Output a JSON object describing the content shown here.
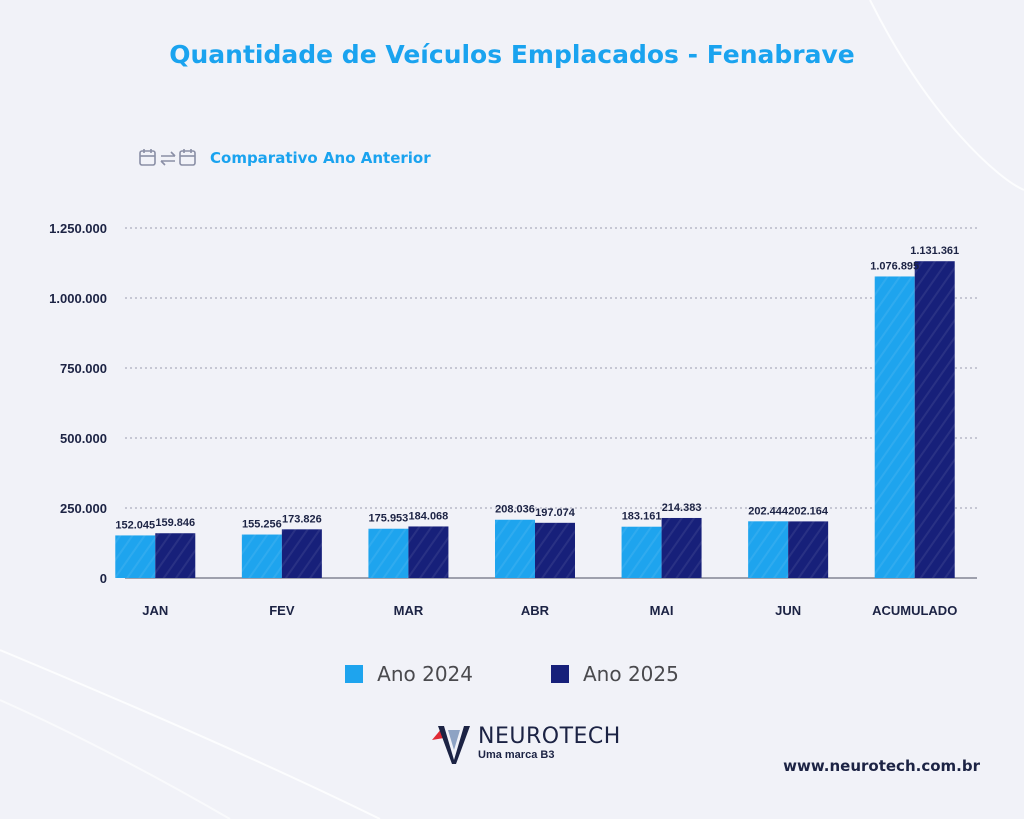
{
  "title": "Quantidade de Veículos Emplacados - Fenabrave",
  "subtitle": "Comparativo Ano Anterior",
  "colors": {
    "ano2024": "#1ea4ee",
    "ano2025": "#17207a",
    "accent": "#1aa3ef",
    "text": "#1c2344"
  },
  "icons": [
    "calendar-icon",
    "swap-arrows-icon",
    "calendar-icon"
  ],
  "chart_data": {
    "type": "bar",
    "categories": [
      "JAN",
      "FEV",
      "MAR",
      "ABR",
      "MAI",
      "JUN",
      "ACUMULADO"
    ],
    "series": [
      {
        "name": "Ano 2024",
        "values": [
          152045,
          155256,
          175953,
          208036,
          183161,
          202444,
          1076895
        ],
        "labels": [
          "152.045",
          "155.256",
          "175.953",
          "208.036",
          "183.161",
          "202.444",
          "1.076.895"
        ]
      },
      {
        "name": "Ano 2025",
        "values": [
          159846,
          173826,
          184068,
          197074,
          214383,
          202164,
          1131361
        ],
        "labels": [
          "159.846",
          "173.826",
          "184.068",
          "197.074",
          "214.383",
          "202.164",
          "1.131.361"
        ]
      }
    ],
    "yticks": [
      0,
      250000,
      500000,
      750000,
      1000000,
      1250000
    ],
    "ytick_labels": [
      "0",
      "250.000",
      "500.000",
      "750.000",
      "1.000.000",
      "1.250.000"
    ],
    "ylim": [
      0,
      1250000
    ],
    "grid": true,
    "legend_position": "bottom"
  },
  "footer": {
    "brand": "NEUROTECH",
    "tagline": "Uma marca B3",
    "website": "www.neurotech.com.br"
  }
}
